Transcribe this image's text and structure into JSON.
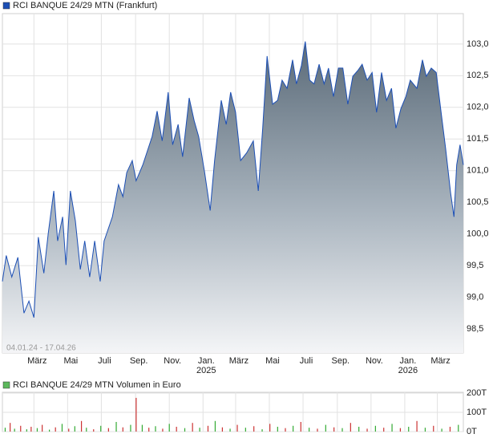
{
  "chart_data": [
    {
      "type": "line",
      "title": "RCI BANQUE 24/29 MTN (Frankfurt)",
      "date_range": "04.01.24 - 17.04.26",
      "color": "#1c4fb5",
      "x": [
        0,
        7,
        17,
        28,
        39,
        48,
        57,
        65,
        75,
        83,
        93,
        100,
        109,
        115,
        123,
        132,
        141,
        149,
        158,
        167,
        177,
        184,
        199,
        210,
        218,
        225,
        235,
        242,
        254,
        271,
        280,
        289,
        300,
        308,
        318,
        326,
        338,
        347,
        355,
        366,
        376,
        384,
        396,
        405,
        413,
        422,
        431,
        442,
        454,
        463,
        471,
        479,
        489,
        498,
        506,
        515,
        525,
        532,
        541,
        548,
        556,
        564,
        573,
        582,
        590,
        599,
        608,
        616,
        625,
        634,
        643,
        651,
        660,
        669,
        677,
        686,
        695,
        704,
        712,
        721,
        730,
        738,
        750,
        760,
        767,
        776,
        785,
        793,
        802,
        811,
        817,
        822,
        828,
        834
      ],
      "values": [
        99.25,
        99.66,
        99.32,
        99.63,
        98.75,
        98.94,
        98.68,
        99.95,
        99.38,
        100.01,
        100.68,
        99.89,
        100.27,
        99.51,
        100.68,
        100.21,
        99.44,
        99.89,
        99.32,
        99.89,
        99.25,
        99.89,
        100.27,
        100.78,
        100.59,
        100.97,
        101.16,
        100.84,
        101.09,
        101.54,
        101.94,
        101.47,
        102.24,
        101.41,
        101.73,
        101.22,
        102.15,
        101.79,
        101.54,
        100.97,
        100.37,
        101.16,
        102.11,
        101.73,
        102.24,
        101.92,
        101.16,
        101.28,
        101.47,
        100.68,
        101.67,
        102.81,
        102.05,
        102.11,
        102.43,
        102.3,
        102.75,
        102.37,
        102.66,
        103.04,
        102.43,
        102.37,
        102.68,
        102.37,
        102.62,
        102.17,
        102.62,
        102.62,
        102.05,
        102.49,
        102.58,
        102.68,
        102.43,
        102.55,
        101.92,
        102.55,
        102.11,
        102.3,
        101.67,
        101.98,
        102.17,
        102.43,
        102.3,
        102.75,
        102.49,
        102.62,
        102.55,
        101.98,
        101.35,
        100.65,
        100.27,
        101.09,
        101.41,
        101.09
      ],
      "xlim": [
        0,
        834
      ],
      "xticks": [
        {
          "value": 57,
          "label": "März"
        },
        {
          "value": 118,
          "label": "Mai"
        },
        {
          "value": 179,
          "label": "Juli"
        },
        {
          "value": 241,
          "label": "Sep."
        },
        {
          "value": 302,
          "label": "Nov."
        },
        {
          "value": 363,
          "label": "Jan.",
          "sublabel": "2025"
        },
        {
          "value": 422,
          "label": "März"
        },
        {
          "value": 483,
          "label": "Mai"
        },
        {
          "value": 544,
          "label": "Juli"
        },
        {
          "value": 606,
          "label": "Sep."
        },
        {
          "value": 667,
          "label": "Nov."
        },
        {
          "value": 728,
          "label": "Jan.",
          "sublabel": "2026"
        },
        {
          "value": 787,
          "label": "März"
        }
      ],
      "ylim": [
        98.12,
        103.48
      ],
      "yticks": [
        {
          "value": 98.5,
          "label": "98,5"
        },
        {
          "value": 99,
          "label": "99,0"
        },
        {
          "value": 99.5,
          "label": "99,5"
        },
        {
          "value": 100,
          "label": "100,0"
        },
        {
          "value": 100.5,
          "label": "100,5"
        },
        {
          "value": 101,
          "label": "101,0"
        },
        {
          "value": 101.5,
          "label": "101,5"
        },
        {
          "value": 102,
          "label": "102,0"
        },
        {
          "value": 102.5,
          "label": "102,5"
        },
        {
          "value": 103,
          "label": "103,0"
        }
      ],
      "grid": true
    },
    {
      "type": "bar",
      "title": "RCI BANQUE 24/29 MTN Volumen in Euro",
      "legend_color": "#5cb85c",
      "x": [
        5,
        14,
        22,
        33,
        44,
        52,
        63,
        72,
        85,
        96,
        108,
        120,
        131,
        143,
        152,
        165,
        178,
        192,
        206,
        218,
        232,
        242,
        253,
        265,
        277,
        290,
        302,
        315,
        330,
        344,
        357,
        372,
        385,
        398,
        412,
        425,
        440,
        455,
        470,
        484,
        498,
        512,
        526,
        540,
        555,
        570,
        585,
        600,
        615,
        630,
        645,
        660,
        675,
        690,
        705,
        720,
        735,
        750,
        765,
        780,
        795,
        810,
        825
      ],
      "values": [
        20,
        45,
        15,
        30,
        12,
        25,
        18,
        35,
        10,
        22,
        40,
        15,
        28,
        55,
        20,
        12,
        30,
        18,
        50,
        22,
        35,
        175,
        35,
        20,
        28,
        15,
        40,
        25,
        18,
        45,
        20,
        30,
        55,
        22,
        15,
        35,
        20,
        28,
        12,
        40,
        25,
        18,
        30,
        50,
        20,
        15,
        35,
        22,
        18,
        45,
        25,
        15,
        30,
        20,
        40,
        18,
        25,
        55,
        20,
        30,
        15,
        25,
        35
      ],
      "colors": [
        "#33aa33",
        "#cc3333",
        "#33aa33",
        "#cc3333",
        "#33aa33",
        "#cc3333",
        "#33aa33",
        "#cc3333",
        "#33aa33",
        "#cc3333",
        "#33aa33",
        "#cc3333",
        "#33aa33",
        "#cc3333",
        "#33aa33",
        "#cc3333",
        "#33aa33",
        "#cc3333",
        "#33aa33",
        "#cc3333",
        "#33aa33",
        "#cc3333",
        "#33aa33",
        "#cc3333",
        "#33aa33",
        "#cc3333",
        "#33aa33",
        "#cc3333",
        "#33aa33",
        "#cc3333",
        "#33aa33",
        "#cc3333",
        "#33aa33",
        "#cc3333",
        "#33aa33",
        "#cc3333",
        "#33aa33",
        "#cc3333",
        "#33aa33",
        "#cc3333",
        "#33aa33",
        "#cc3333",
        "#33aa33",
        "#cc3333",
        "#33aa33",
        "#cc3333",
        "#33aa33",
        "#cc3333",
        "#33aa33",
        "#cc3333",
        "#33aa33",
        "#cc3333",
        "#33aa33",
        "#cc3333",
        "#33aa33",
        "#cc3333",
        "#33aa33",
        "#cc3333",
        "#33aa33",
        "#cc3333",
        "#33aa33",
        "#cc3333",
        "#33aa33"
      ],
      "xlim": [
        0,
        834
      ],
      "ylim": [
        0,
        204
      ],
      "yticks": [
        {
          "value": 0,
          "label": "0T"
        },
        {
          "value": 100,
          "label": "100T"
        },
        {
          "value": 200,
          "label": "200T"
        }
      ],
      "grid": true
    }
  ]
}
